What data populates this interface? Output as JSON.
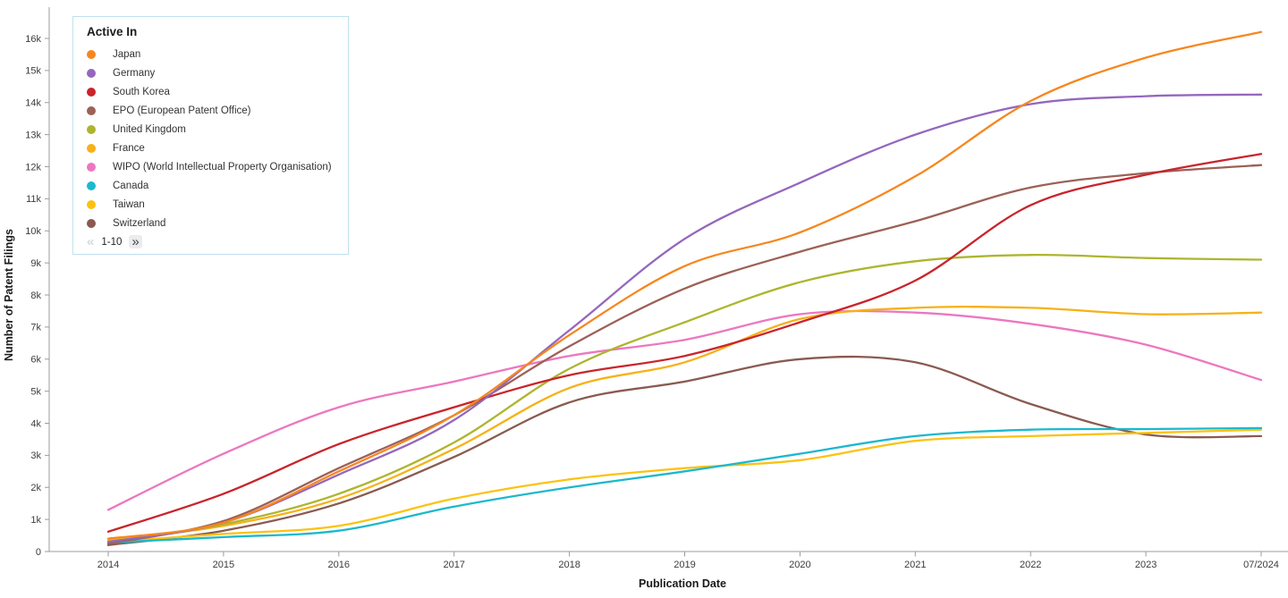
{
  "legend": {
    "title": "Active In",
    "pagination": {
      "prev_icon": "«",
      "range_label": "1-10",
      "next_icon": "»"
    }
  },
  "chart_data": {
    "type": "line",
    "title": "",
    "xlabel": "Publication Date",
    "ylabel": "Number of Patent Filings",
    "x_tick_labels": [
      "2014",
      "2015",
      "2016",
      "2017",
      "2018",
      "2019",
      "2020",
      "2021",
      "2022",
      "2023",
      "07/2024"
    ],
    "y_tick_labels": [
      "0",
      "1k",
      "2k",
      "3k",
      "4k",
      "5k",
      "6k",
      "7k",
      "8k",
      "9k",
      "10k",
      "11k",
      "12k",
      "13k",
      "14k",
      "15k",
      "16k"
    ],
    "y_tick_step": 1000,
    "ylim": [
      0,
      16600
    ],
    "grid": false,
    "legend_position": "top-left",
    "series": [
      {
        "name": "Japan",
        "color": "#F6871F",
        "values": [
          400,
          900,
          2500,
          4250,
          6750,
          8900,
          9950,
          11700,
          14050,
          15400,
          16200
        ]
      },
      {
        "name": "Germany",
        "color": "#9467BD",
        "values": [
          300,
          900,
          2400,
          4100,
          6900,
          9750,
          11500,
          13000,
          13950,
          14200,
          14250
        ]
      },
      {
        "name": "South Korea",
        "color": "#C9242B",
        "values": [
          620,
          1800,
          3350,
          4500,
          5500,
          6100,
          7150,
          8450,
          10800,
          11750,
          12400
        ]
      },
      {
        "name": "EPO (European Patent Office)",
        "color": "#9C6157",
        "values": [
          250,
          950,
          2600,
          4250,
          6400,
          8200,
          9350,
          10300,
          11350,
          11800,
          12050
        ]
      },
      {
        "name": "United Kingdom",
        "color": "#ADB52E",
        "values": [
          300,
          850,
          1800,
          3400,
          5700,
          7150,
          8400,
          9050,
          9250,
          9150,
          9100
        ]
      },
      {
        "name": "France",
        "color": "#F7B117",
        "values": [
          350,
          800,
          1650,
          3200,
          5100,
          5900,
          7250,
          7600,
          7600,
          7400,
          7450
        ]
      },
      {
        "name": "WIPO (World Intellectual Property Organisation)",
        "color": "#EC77C0",
        "values": [
          1300,
          3050,
          4500,
          5300,
          6100,
          6600,
          7400,
          7450,
          7100,
          6450,
          5350
        ]
      },
      {
        "name": "Canada",
        "color": "#1CB8CC",
        "values": [
          280,
          450,
          650,
          1400,
          2000,
          2500,
          3050,
          3600,
          3800,
          3820,
          3850
        ]
      },
      {
        "name": "Taiwan",
        "color": "#FCC211",
        "values": [
          300,
          550,
          800,
          1650,
          2250,
          2600,
          2850,
          3450,
          3600,
          3700,
          3800
        ]
      },
      {
        "name": "Switzerland",
        "color": "#8A5A50",
        "values": [
          200,
          650,
          1500,
          2950,
          4650,
          5300,
          6000,
          5900,
          4600,
          3650,
          3600
        ]
      }
    ]
  }
}
